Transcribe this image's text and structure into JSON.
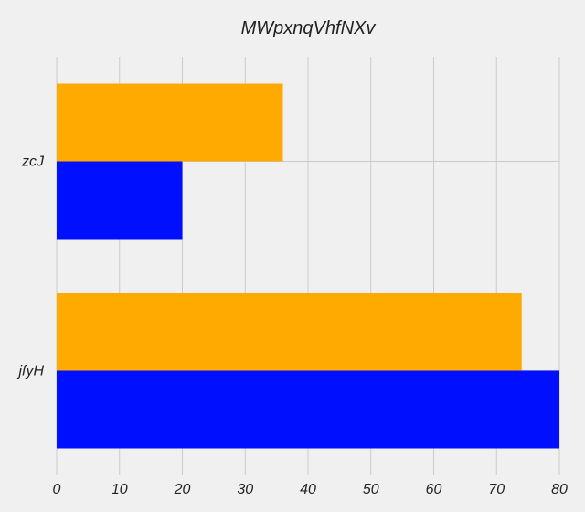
{
  "chart_data": {
    "type": "bar",
    "orientation": "horizontal",
    "title": "MWpxnqVhfNXv",
    "xlabel": "",
    "ylabel": "",
    "categories": [
      "jfyH",
      "zcJ"
    ],
    "series": [
      {
        "values": [
          80,
          20
        ],
        "color": "#0010ff"
      },
      {
        "values": [
          74,
          36
        ],
        "color": "#ffaa00"
      }
    ],
    "xlim": [
      0,
      80
    ],
    "xticks": [
      0,
      10,
      20,
      30,
      40,
      50,
      60,
      70,
      80
    ],
    "grid": true,
    "legend": "none"
  }
}
